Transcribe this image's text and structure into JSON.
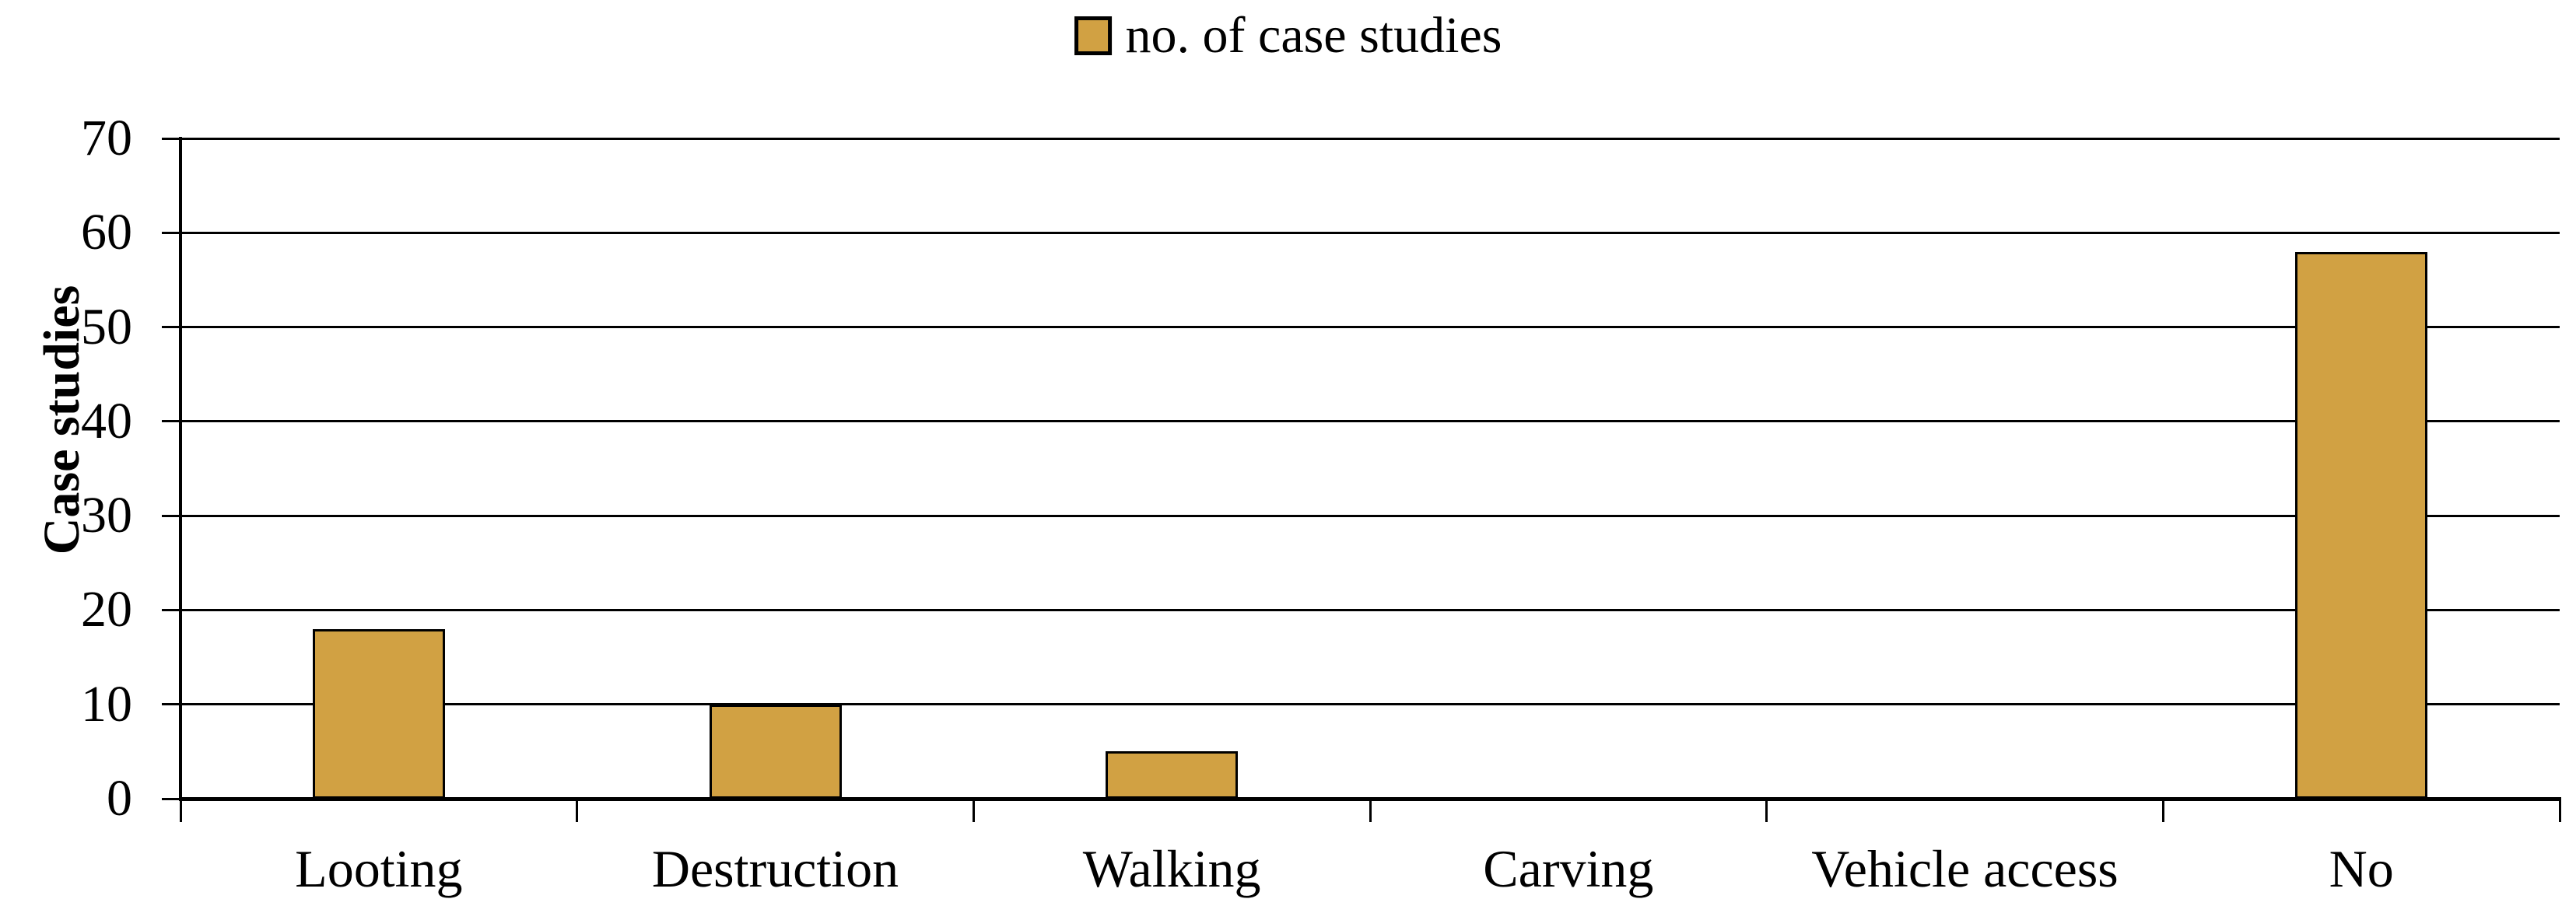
{
  "chart_data": {
    "type": "bar",
    "title": "",
    "categories": [
      "Looting",
      "Destruction",
      "Walking",
      "Carving",
      "Vehicle access",
      "No"
    ],
    "series": [
      {
        "name": "no. of case studies",
        "values": [
          18,
          10,
          5,
          0,
          0,
          58
        ]
      }
    ],
    "xlabel": "",
    "ylabel": "Case studies",
    "ylim": [
      0,
      70
    ],
    "yticks": [
      0,
      10,
      20,
      30,
      40,
      50,
      60,
      70
    ],
    "grid": true,
    "legend_position": "top-center",
    "colors": {
      "bar_fill": "#D1A143",
      "bar_border": "#000000",
      "axis": "#000000",
      "gridline": "#000000",
      "text": "#000000",
      "background": "#FFFFFF"
    }
  }
}
